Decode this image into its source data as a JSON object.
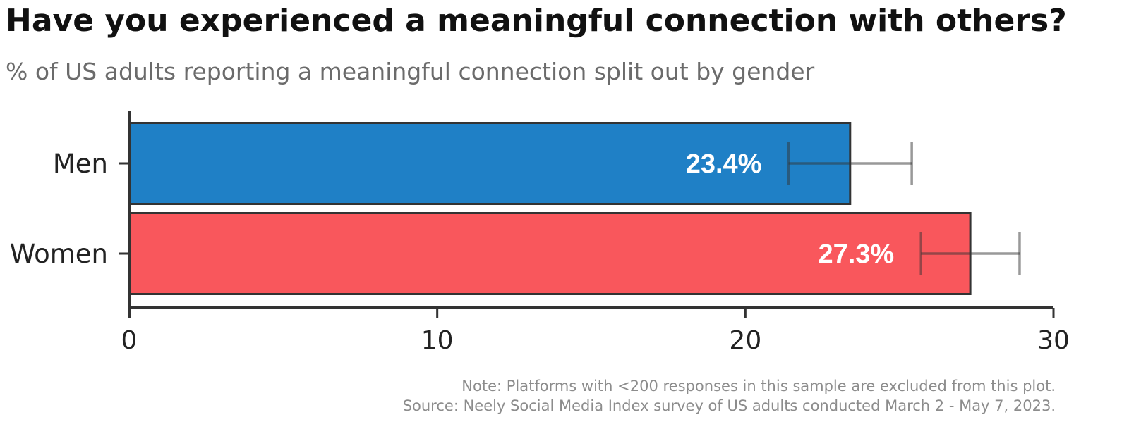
{
  "chart_data": {
    "type": "bar",
    "orientation": "horizontal",
    "title": "Have you experienced a meaningful connection with others?",
    "subtitle": "% of US adults reporting a meaningful connection split out by gender",
    "categories": [
      "Men",
      "Women"
    ],
    "values": [
      23.4,
      27.3
    ],
    "data_labels": [
      "23.4%",
      "27.3%"
    ],
    "error_bars": [
      {
        "low": 21.4,
        "high": 25.4
      },
      {
        "low": 25.7,
        "high": 28.9
      }
    ],
    "colors": [
      "#1f80c6",
      "#f9575c"
    ],
    "xlim": [
      0,
      30
    ],
    "x_ticks": [
      "0",
      "10",
      "20",
      "30"
    ],
    "xlabel": "",
    "ylabel": "",
    "grid": false,
    "legend": "none"
  },
  "notes": [
    "Note: Platforms with <200 responses in this sample are excluded from this plot.",
    "Source: Neely Social Media Index survey of US adults conducted March 2 - May 7, 2023."
  ]
}
